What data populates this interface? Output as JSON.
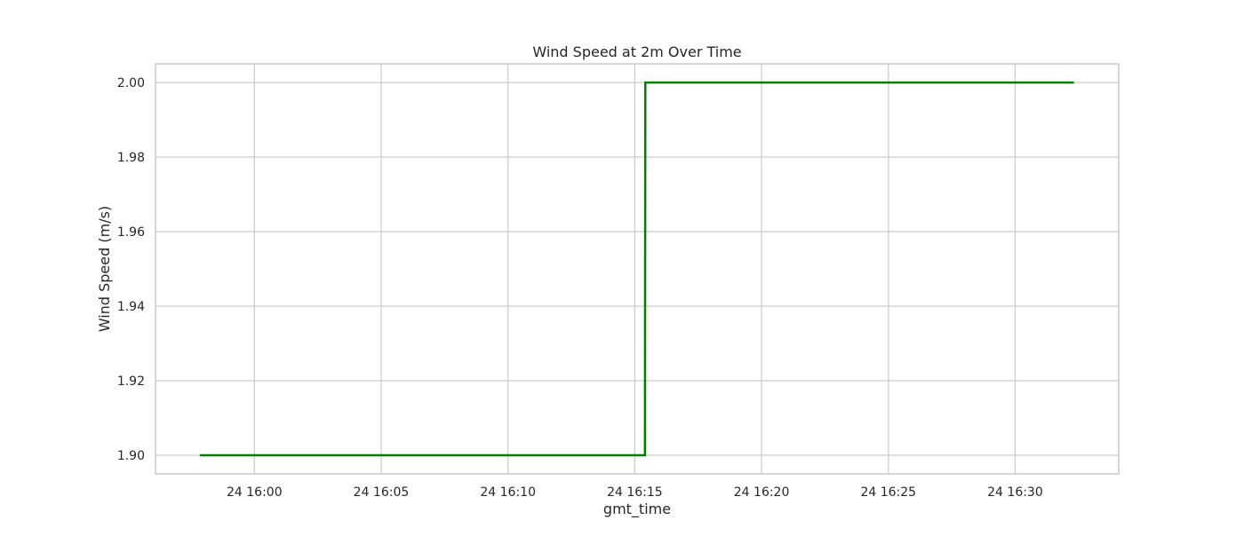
{
  "chart_data": {
    "type": "line",
    "title": "Wind Speed at 2m Over Time",
    "xlabel": "gmt_time",
    "ylabel": "Wind Speed (m/s)",
    "grid": true,
    "x_tick_values": [
      "15:60",
      "16:05",
      "16:10",
      "16:15",
      "16:20",
      "16:25",
      "16:30"
    ],
    "x_tick_labels": [
      "24 16:00",
      "24 16:05",
      "24 16:10",
      "24 16:15",
      "24 16:20",
      "24 16:25",
      "24 16:30"
    ],
    "y_ticks": [
      1.9,
      1.92,
      1.94,
      1.96,
      1.98,
      2.0
    ],
    "y_tick_labels": [
      "1.90",
      "1.92",
      "1.94",
      "1.96",
      "1.98",
      "2.00"
    ],
    "xlim": [
      "15:56:06",
      "16:34:05"
    ],
    "ylim": [
      1.895,
      2.005
    ],
    "series": [
      {
        "color": "#008000",
        "x": [
          "15:57:51",
          "16:15:24",
          "16:15:25",
          "16:32:19"
        ],
        "y": [
          1.9,
          1.9,
          2.0,
          2.0
        ]
      }
    ]
  }
}
